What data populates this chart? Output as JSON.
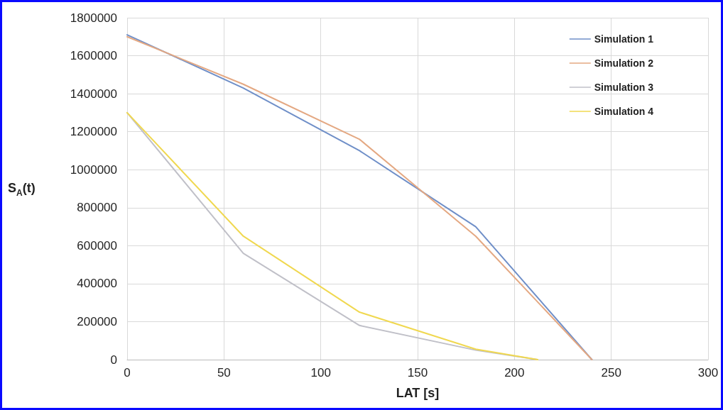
{
  "chart_data": {
    "type": "line",
    "xlabel": "LAT [s]",
    "ylabel": "S$_{A}$(t)",
    "xlim": [
      0,
      300
    ],
    "xticks": [
      0,
      50,
      100,
      150,
      200,
      250,
      300
    ],
    "ylim": [
      0,
      1800000
    ],
    "yticks": [
      0,
      200000,
      400000,
      600000,
      800000,
      1000000,
      1200000,
      1400000,
      1600000,
      1800000
    ],
    "grid": true,
    "legend": "top right",
    "marker": "none",
    "line_style": "solid",
    "series": [
      {
        "name": "Simulation 1",
        "color": "#6f8fc8",
        "x": [
          0,
          60,
          120,
          180,
          240
        ],
        "values": [
          1710000,
          1430000,
          1100000,
          700000,
          0
        ]
      },
      {
        "name": "Simulation 2",
        "color": "#e4a882",
        "x": [
          0,
          60,
          120,
          180,
          240
        ],
        "values": [
          1700000,
          1450000,
          1160000,
          650000,
          0
        ]
      },
      {
        "name": "Simulation 3",
        "color": "#c0c0c8",
        "x": [
          0,
          60,
          120,
          180,
          212
        ],
        "values": [
          1300000,
          560000,
          180000,
          50000,
          0
        ]
      },
      {
        "name": "Simulation 4",
        "color": "#f0d850",
        "x": [
          0,
          60,
          120,
          180,
          212
        ],
        "values": [
          1300000,
          650000,
          250000,
          55000,
          0
        ]
      }
    ]
  }
}
